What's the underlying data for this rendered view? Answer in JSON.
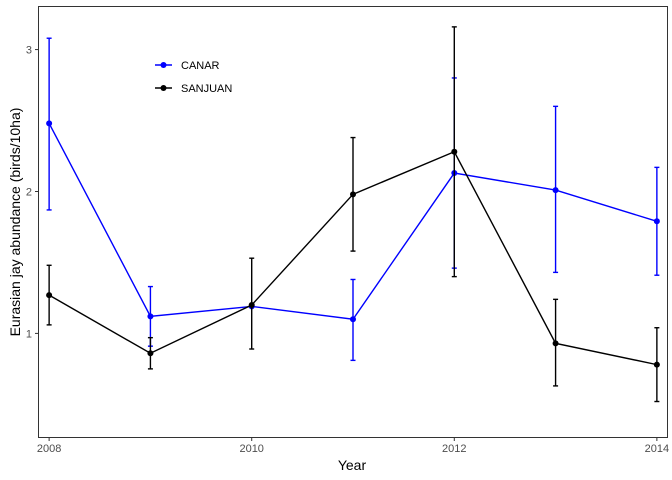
{
  "chart_data": {
    "type": "line",
    "xlabel": "Year",
    "ylabel": "Eurasian jay abundance (birds/10ha)",
    "xlim": [
      2007.9,
      2014.1
    ],
    "ylim": [
      0.27,
      3.3
    ],
    "x_ticks": [
      2008,
      2010,
      2012,
      2014
    ],
    "y_ticks": [
      1,
      2,
      3
    ],
    "grid": false,
    "legend_position": "top-left",
    "series": [
      {
        "name": "CANAR",
        "color": "#0000ff",
        "x": [
          2008,
          2009,
          2010,
          2011,
          2012,
          2013,
          2014
        ],
        "y": [
          2.48,
          1.12,
          1.19,
          1.1,
          2.13,
          2.01,
          1.79
        ],
        "err_low": [
          1.87,
          0.91,
          1.19,
          0.81,
          1.46,
          1.43,
          1.41
        ],
        "err_high": [
          3.08,
          1.33,
          1.19,
          1.38,
          2.8,
          2.6,
          2.17
        ]
      },
      {
        "name": "SANJUAN",
        "color": "#000000",
        "x": [
          2008,
          2009,
          2010,
          2011,
          2012,
          2013,
          2014
        ],
        "y": [
          1.27,
          0.86,
          1.2,
          1.98,
          2.28,
          0.93,
          0.78
        ],
        "err_low": [
          1.06,
          0.75,
          0.89,
          1.58,
          1.4,
          0.63,
          0.52
        ],
        "err_high": [
          1.48,
          0.97,
          1.53,
          2.38,
          3.16,
          1.24,
          1.04
        ]
      }
    ]
  }
}
